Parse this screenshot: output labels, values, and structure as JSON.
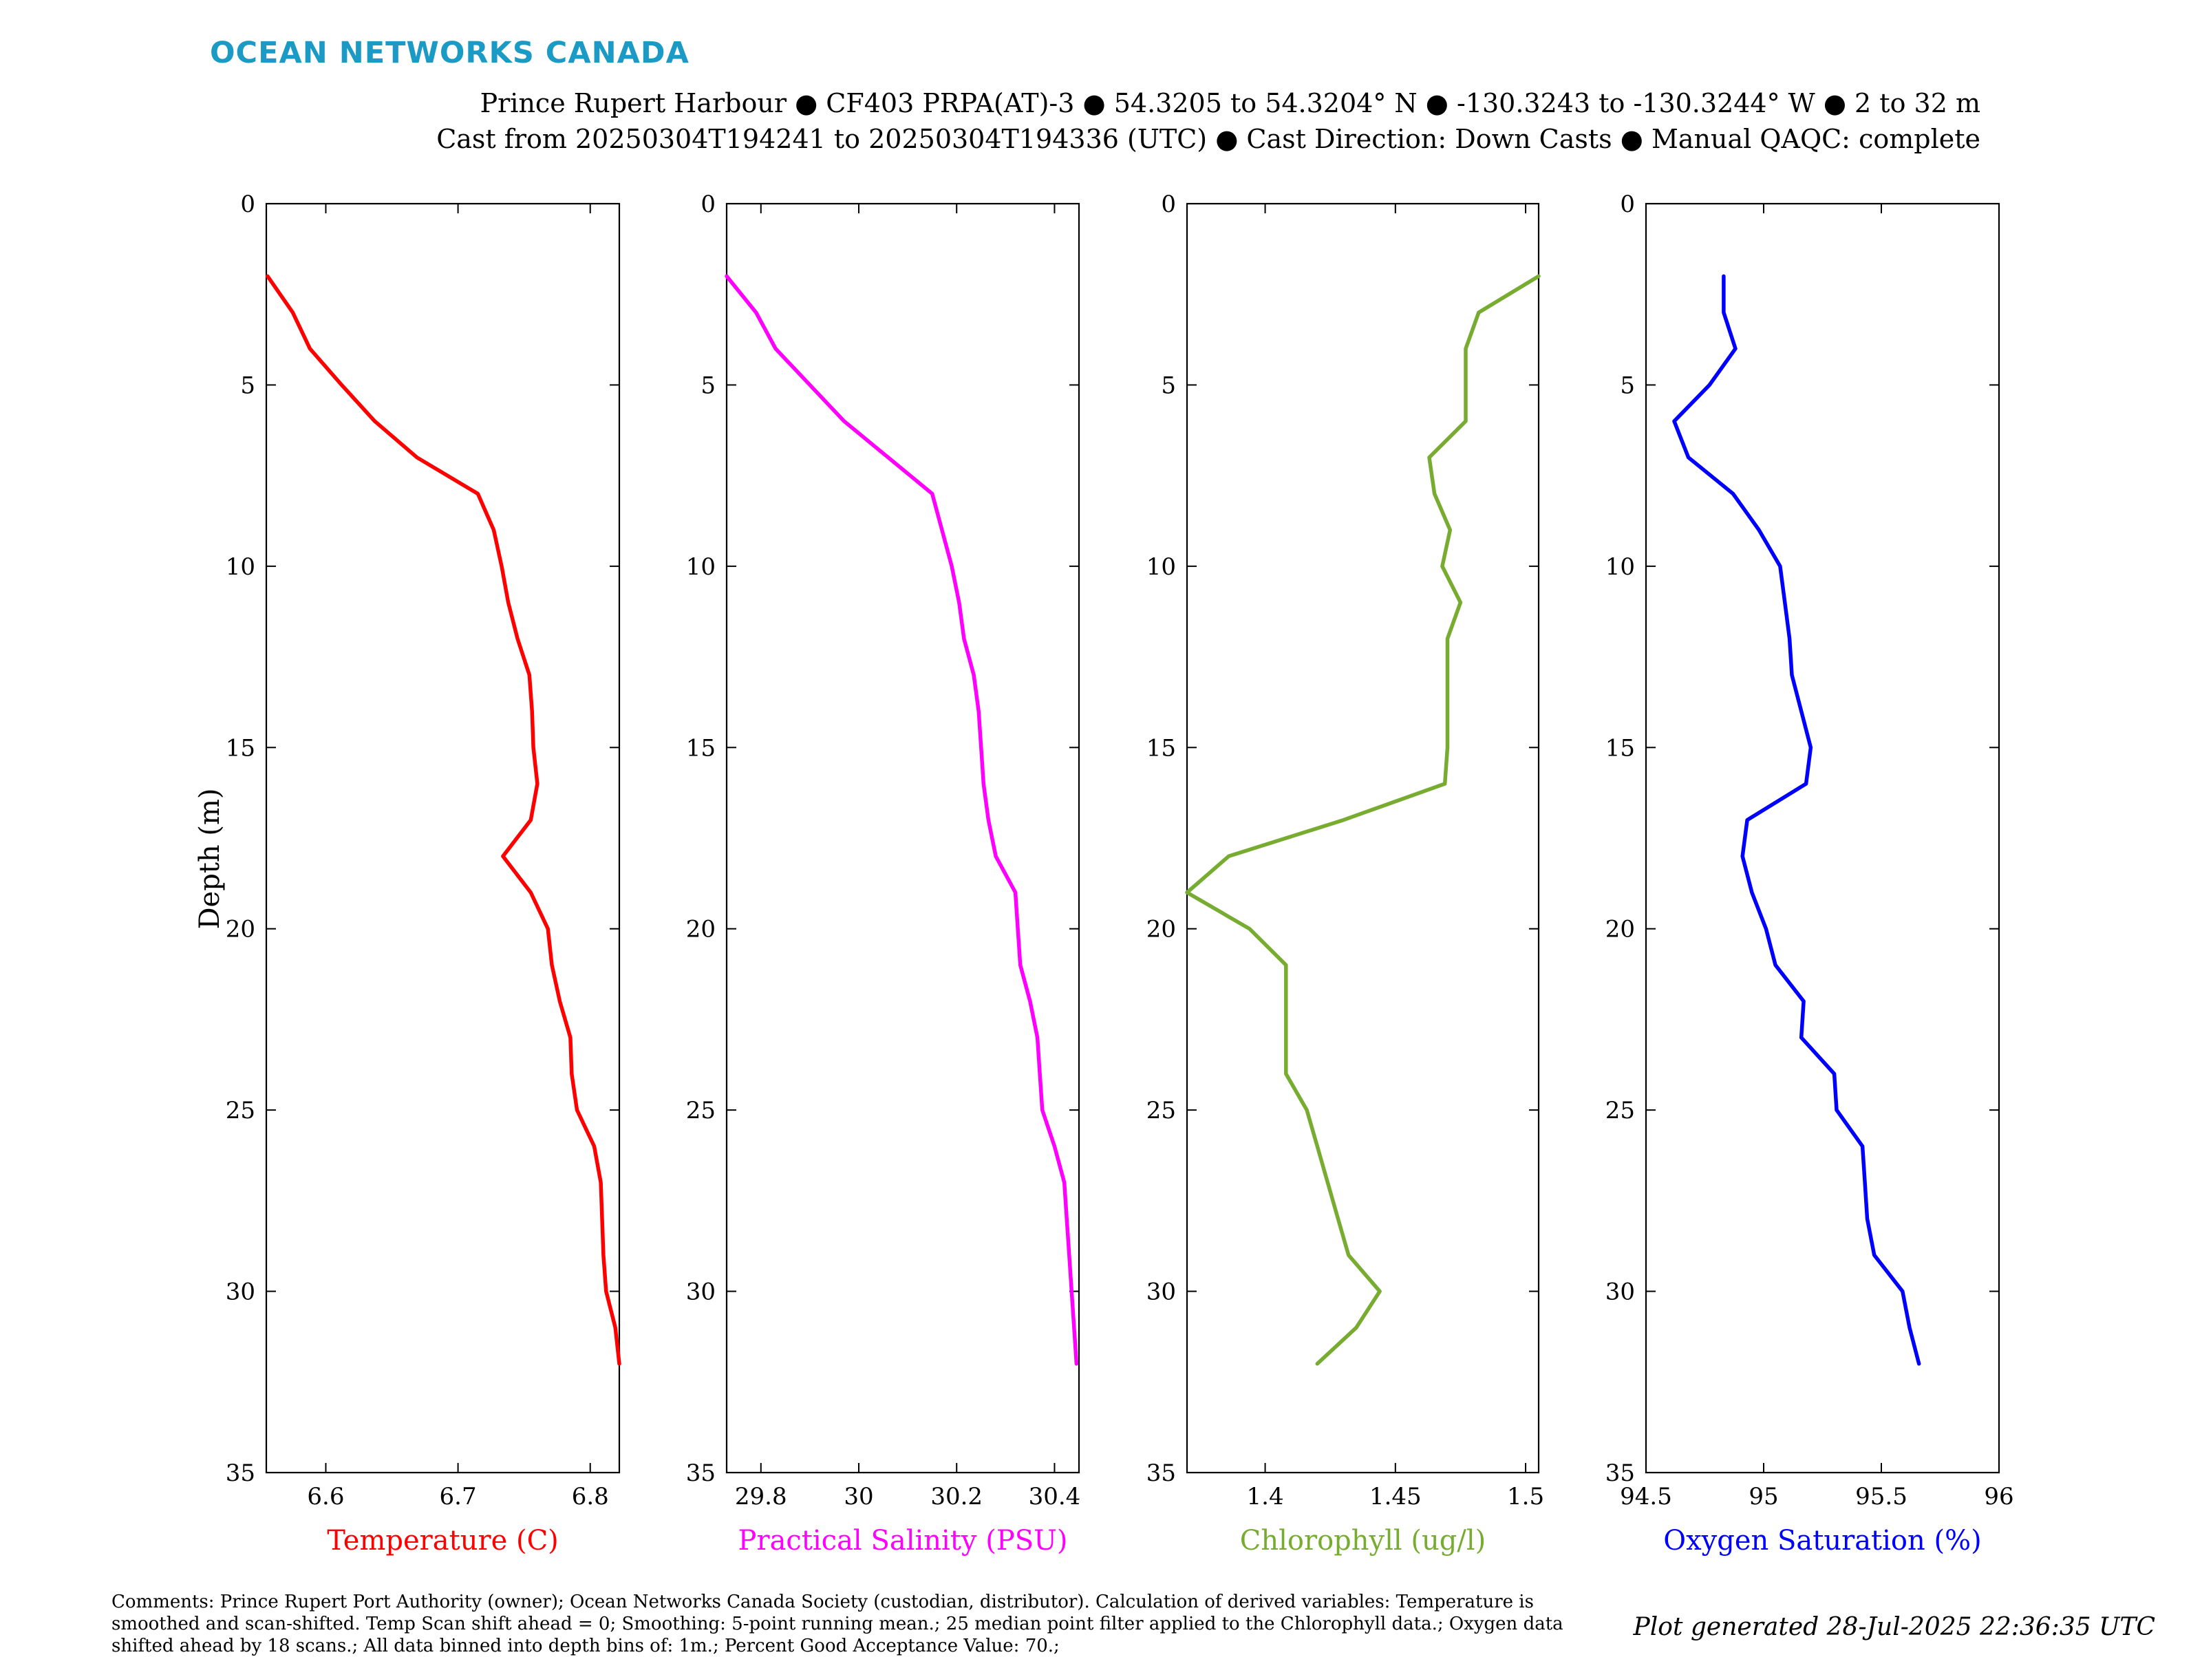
{
  "header": {
    "brand": "OCEAN NETWORKS CANADA",
    "title_line1": "Prince Rupert Harbour ● CF403 PRPA(AT)-3 ● 54.3205 to 54.3204° N ● -130.3243 to -130.3244° W ● 2 to 32 m",
    "title_line2": "Cast from 20250304T194241 to 20250304T194336 (UTC) ● Cast Direction: Down Casts ● Manual QAQC: complete"
  },
  "footer": {
    "comments": "Comments: Prince Rupert Port Authority (owner); Ocean Networks Canada Society (custodian, distributor). Calculation of derived variables: Temperature is smoothed and scan-shifted. Temp Scan shift ahead = 0; Smoothing: 5-point running mean.; 25 median point filter applied to the Chlorophyll data.; Oxygen data shifted ahead by 18 scans.; All data binned into depth bins of: 1m.; Percent Good Acceptance Value: 70.;",
    "generated": "Plot generated 28-Jul-2025 22:36:35 UTC"
  },
  "chart_data": [
    {
      "type": "line",
      "xlabel": "Temperature (C)",
      "ylabel": "Depth (m)",
      "color": "#ff0000",
      "xlim": [
        6.555,
        6.822
      ],
      "ylim": [
        35,
        0
      ],
      "y_reversed": true,
      "xticks": [
        6.6,
        6.7,
        6.8
      ],
      "xtick_labels": [
        "6.6",
        "6.7",
        "6.8"
      ],
      "yticks": [
        0,
        5,
        10,
        15,
        20,
        25,
        30,
        35
      ],
      "series": [
        {
          "depth": [
            2,
            3,
            4,
            5,
            6,
            7,
            8,
            9,
            10,
            11,
            12,
            13,
            14,
            15,
            16,
            17,
            18,
            19,
            20,
            21,
            22,
            23,
            24,
            25,
            26,
            27,
            28,
            29,
            30,
            31,
            32
          ],
          "values": [
            6.556,
            6.575,
            6.588,
            6.612,
            6.637,
            6.669,
            6.715,
            6.727,
            6.733,
            6.738,
            6.745,
            6.754,
            6.756,
            6.757,
            6.76,
            6.755,
            6.734,
            6.755,
            6.768,
            6.771,
            6.777,
            6.785,
            6.786,
            6.79,
            6.803,
            6.808,
            6.809,
            6.81,
            6.812,
            6.819,
            6.822
          ]
        }
      ]
    },
    {
      "type": "line",
      "xlabel": "Practical Salinity (PSU)",
      "ylabel": "",
      "color": "#ff00ff",
      "xlim": [
        29.73,
        30.45
      ],
      "ylim": [
        35,
        0
      ],
      "y_reversed": true,
      "xticks": [
        29.8,
        30,
        30.2,
        30.4
      ],
      "xtick_labels": [
        "29.8",
        "30",
        "30.2",
        "30.4"
      ],
      "yticks": [
        0,
        5,
        10,
        15,
        20,
        25,
        30,
        35
      ],
      "series": [
        {
          "depth": [
            2,
            3,
            4,
            5,
            6,
            7,
            8,
            9,
            10,
            11,
            12,
            13,
            14,
            15,
            16,
            17,
            18,
            19,
            20,
            21,
            22,
            23,
            24,
            25,
            26,
            27,
            28,
            29,
            30,
            31,
            32
          ],
          "values": [
            29.73,
            29.79,
            29.83,
            29.9,
            29.97,
            30.06,
            30.15,
            30.17,
            30.19,
            30.205,
            30.215,
            30.235,
            30.245,
            30.25,
            30.255,
            30.265,
            30.28,
            30.32,
            30.325,
            30.33,
            30.35,
            30.365,
            30.37,
            30.375,
            30.4,
            30.42,
            30.425,
            30.43,
            30.435,
            30.44,
            30.445
          ]
        }
      ]
    },
    {
      "type": "line",
      "xlabel": "Chlorophyll (ug/l)",
      "ylabel": "",
      "color": "#77ac30",
      "xlim": [
        1.37,
        1.505
      ],
      "ylim": [
        35,
        0
      ],
      "y_reversed": true,
      "xticks": [
        1.4,
        1.45,
        1.5
      ],
      "xtick_labels": [
        "1.4",
        "1.45",
        "1.5"
      ],
      "yticks": [
        0,
        5,
        10,
        15,
        20,
        25,
        30,
        35
      ],
      "series": [
        {
          "depth": [
            2,
            3,
            4,
            5,
            6,
            7,
            8,
            9,
            10,
            11,
            12,
            13,
            14,
            15,
            16,
            17,
            18,
            19,
            20,
            21,
            22,
            23,
            24,
            25,
            26,
            27,
            28,
            29,
            30,
            31,
            32
          ],
          "values": [
            1.505,
            1.482,
            1.477,
            1.477,
            1.477,
            1.463,
            1.465,
            1.471,
            1.468,
            1.475,
            1.47,
            1.47,
            1.47,
            1.47,
            1.469,
            1.43,
            1.386,
            1.37,
            1.394,
            1.408,
            1.408,
            1.408,
            1.408,
            1.416,
            1.42,
            1.424,
            1.428,
            1.432,
            1.444,
            1.435,
            1.42
          ]
        }
      ]
    },
    {
      "type": "line",
      "xlabel": "Oxygen Saturation (%)",
      "ylabel": "",
      "color": "#0000ff",
      "xlim": [
        94.5,
        96
      ],
      "ylim": [
        35,
        0
      ],
      "y_reversed": true,
      "xticks": [
        94.5,
        95,
        95.5,
        96
      ],
      "xtick_labels": [
        "94.5",
        "95",
        "95.5",
        "96"
      ],
      "yticks": [
        0,
        5,
        10,
        15,
        20,
        25,
        30,
        35
      ],
      "series": [
        {
          "depth": [
            2,
            3,
            4,
            5,
            6,
            7,
            8,
            9,
            10,
            11,
            12,
            13,
            14,
            15,
            16,
            17,
            18,
            19,
            20,
            21,
            22,
            23,
            24,
            25,
            26,
            27,
            28,
            29,
            30,
            31,
            32
          ],
          "values": [
            94.83,
            94.83,
            94.88,
            94.77,
            94.62,
            94.68,
            94.87,
            94.98,
            95.07,
            95.09,
            95.11,
            95.12,
            95.16,
            95.2,
            95.18,
            94.93,
            94.91,
            94.95,
            95.01,
            95.05,
            95.17,
            95.16,
            95.3,
            95.31,
            95.42,
            95.43,
            95.44,
            95.47,
            95.59,
            95.62,
            95.66
          ]
        }
      ]
    }
  ]
}
